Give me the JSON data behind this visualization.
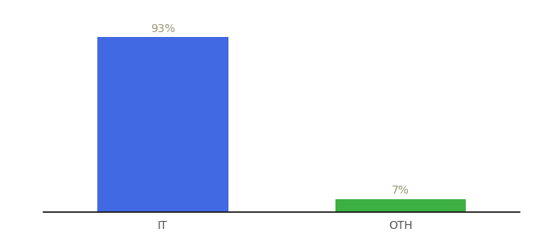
{
  "categories": [
    "IT",
    "OTH"
  ],
  "values": [
    93,
    7
  ],
  "bar_colors": [
    "#4169e1",
    "#3cb043"
  ],
  "label_texts": [
    "93%",
    "7%"
  ],
  "ylim": [
    0,
    100
  ],
  "background_color": "#ffffff",
  "label_color": "#999977",
  "axis_label_color": "#555555",
  "bar_width": 0.55,
  "xlim": [
    -0.5,
    1.5
  ]
}
